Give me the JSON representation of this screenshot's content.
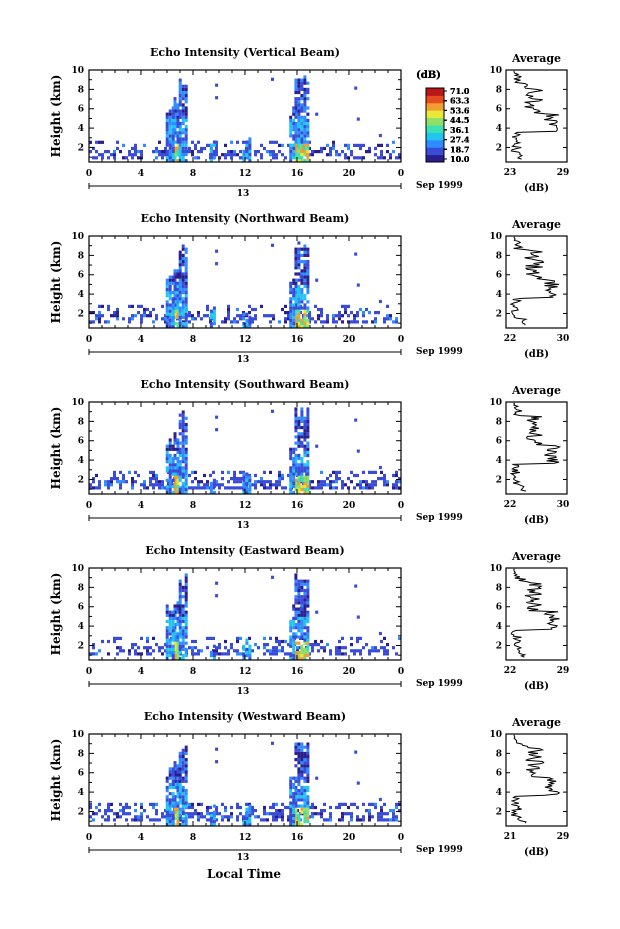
{
  "colors": {
    "scale": [
      "#2a1e8c",
      "#3a4bd8",
      "#2f8cff",
      "#22c4f0",
      "#3de0b0",
      "#8ee066",
      "#e8e83a",
      "#f0a030",
      "#e84a20",
      "#b81818"
    ]
  },
  "xlabel": "Local Time",
  "date_label": "Sep 1999",
  "day_label": "13",
  "cbar_unit": "(dB)",
  "cbar_ticks": [
    "71.0",
    "63.3",
    "53.6",
    "44.5",
    "36.1",
    "27.4",
    "18.7",
    "10.0"
  ],
  "avg_title": "Average",
  "avg_xlabel": "(dB)",
  "chart_data": [
    {
      "type": "heatmap",
      "title": "Echo Intensity (Vertical Beam)",
      "ylabel": "Height (km)",
      "xticks": [
        "0",
        "4",
        "8",
        "12",
        "16",
        "20",
        "0"
      ],
      "yticks": [
        "2",
        "4",
        "6",
        "8",
        "10"
      ],
      "xlim": [
        0,
        24
      ],
      "ylim": [
        0.5,
        10
      ],
      "avg": {
        "xticks": [
          "23",
          "29"
        ],
        "yticks": [
          "2",
          "4",
          "6",
          "8",
          "10"
        ],
        "xlim": [
          23,
          29
        ]
      }
    },
    {
      "type": "heatmap",
      "title": "Echo Intensity (Northward Beam)",
      "ylabel": "Height (km)",
      "xticks": [
        "0",
        "4",
        "8",
        "12",
        "16",
        "20",
        "0"
      ],
      "yticks": [
        "2",
        "4",
        "6",
        "8",
        "10"
      ],
      "xlim": [
        0,
        24
      ],
      "ylim": [
        0.5,
        10
      ],
      "avg": {
        "xticks": [
          "22",
          "30"
        ],
        "yticks": [
          "2",
          "4",
          "6",
          "8",
          "10"
        ],
        "xlim": [
          22,
          30
        ]
      }
    },
    {
      "type": "heatmap",
      "title": "Echo Intensity (Southward Beam)",
      "ylabel": "Height (km)",
      "xticks": [
        "0",
        "4",
        "8",
        "12",
        "16",
        "20",
        "0"
      ],
      "yticks": [
        "2",
        "4",
        "6",
        "8",
        "10"
      ],
      "xlim": [
        0,
        24
      ],
      "ylim": [
        0.5,
        10
      ],
      "avg": {
        "xticks": [
          "22",
          "30"
        ],
        "yticks": [
          "2",
          "4",
          "6",
          "8",
          "10"
        ],
        "xlim": [
          22,
          30
        ]
      }
    },
    {
      "type": "heatmap",
      "title": "Echo Intensity (Eastward Beam)",
      "ylabel": "Height (km)",
      "xticks": [
        "0",
        "4",
        "8",
        "12",
        "16",
        "20",
        "0"
      ],
      "yticks": [
        "2",
        "4",
        "6",
        "8",
        "10"
      ],
      "xlim": [
        0,
        24
      ],
      "ylim": [
        0.5,
        10
      ],
      "avg": {
        "xticks": [
          "22",
          "29"
        ],
        "yticks": [
          "2",
          "4",
          "6",
          "8",
          "10"
        ],
        "xlim": [
          22,
          29
        ]
      }
    },
    {
      "type": "heatmap",
      "title": "Echo Intensity (Westward Beam)",
      "ylabel": "Height (km)",
      "xticks": [
        "0",
        "4",
        "8",
        "12",
        "16",
        "20",
        "0"
      ],
      "yticks": [
        "2",
        "4",
        "6",
        "8",
        "10"
      ],
      "xlim": [
        0,
        24
      ],
      "ylim": [
        0.5,
        10
      ],
      "avg": {
        "xticks": [
          "21",
          "29"
        ],
        "yticks": [
          "2",
          "4",
          "6",
          "8",
          "10"
        ],
        "xlim": [
          21,
          29
        ]
      }
    }
  ]
}
